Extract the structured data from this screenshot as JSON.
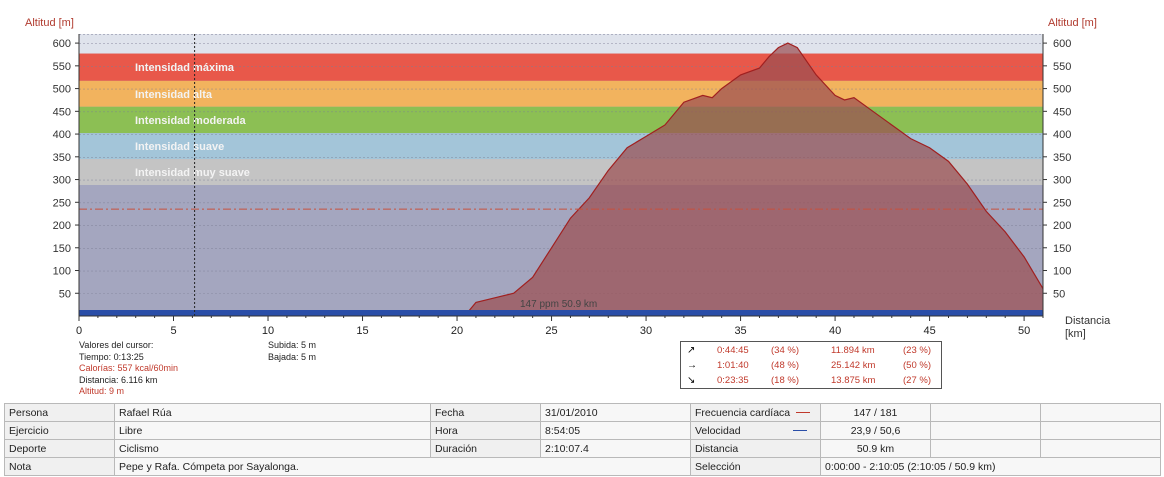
{
  "chart_data": {
    "type": "area",
    "ylabel": "Altitud [m]",
    "xlabel": "Distancia [km]",
    "xlim": [
      0,
      51
    ],
    "ylim": [
      0,
      620
    ],
    "x_ticks": [
      0,
      5,
      10,
      15,
      20,
      25,
      30,
      35,
      40,
      45,
      50
    ],
    "y_ticks": [
      50,
      100,
      150,
      200,
      250,
      300,
      350,
      400,
      450,
      500,
      550,
      600
    ],
    "grid": "dashed horizontal",
    "zones": [
      {
        "label": "Intensidad máxima",
        "from": 517,
        "to": 577,
        "color": "#e8584a"
      },
      {
        "label": "Intensidad alta",
        "from": 460,
        "to": 517,
        "color": "#f2b35e"
      },
      {
        "label": "Intensidad moderada",
        "from": 402,
        "to": 460,
        "color": "#8cbf54"
      },
      {
        "label": "Intensidad suave",
        "from": 345,
        "to": 402,
        "color": "#a3c5d9"
      },
      {
        "label": "Intensidad muy suave",
        "from": 288,
        "to": 345,
        "color": "#c4c4c4"
      }
    ],
    "cursor_x": 6.116,
    "series": [
      {
        "name": "Altitud",
        "color": "#9b3b3b",
        "x": [
          0,
          20.5,
          21,
          22,
          23,
          24,
          25,
          26,
          27,
          28,
          29,
          30,
          31,
          32,
          33,
          33.5,
          34,
          35,
          36,
          36.5,
          37,
          37.5,
          38,
          38.5,
          39,
          40,
          40.5,
          41,
          42,
          43,
          44,
          45,
          46,
          47,
          48,
          49,
          50,
          51
        ],
        "y": [
          5,
          5,
          30,
          40,
          50,
          85,
          150,
          215,
          260,
          320,
          370,
          395,
          420,
          470,
          485,
          480,
          500,
          530,
          545,
          570,
          590,
          600,
          590,
          560,
          530,
          485,
          475,
          480,
          450,
          420,
          390,
          370,
          340,
          290,
          230,
          185,
          130,
          60
        ]
      }
    ],
    "reference_line_y": 235,
    "footer_note": "147 ppm 50.9 km"
  },
  "axes": {
    "left_title": "Altitud [m]",
    "right_title": "Altitud [m]",
    "x_title_1": "Distancia",
    "x_title_2": "[km]"
  },
  "cursor": {
    "title": "Valores del cursor:",
    "tiempo": "Tiempo: 0:13:25",
    "calorias": "Calorías: 557 kcal/60min",
    "distancia": "Distancia: 6.116 km",
    "altitud": "Altitud: 9 m",
    "subida": "Subida: 5 m",
    "bajada": "Bajada: 5 m"
  },
  "summary": [
    {
      "icon": "↗",
      "time": "0:44:45",
      "time_pct": "(34 %)",
      "dist": "11.894 km",
      "dist_pct": "(23 %)"
    },
    {
      "icon": "→",
      "time": "1:01:40",
      "time_pct": "(48 %)",
      "dist": "25.142 km",
      "dist_pct": "(50 %)"
    },
    {
      "icon": "↘",
      "time": "0:23:35",
      "time_pct": "(18 %)",
      "dist": "13.875 km",
      "dist_pct": "(27 %)"
    }
  ],
  "info": {
    "persona_label": "Persona",
    "persona": "Rafael Rúa",
    "ejercicio_label": "Ejercicio",
    "ejercicio": "Libre",
    "deporte_label": "Deporte",
    "deporte": "Ciclismo",
    "nota_label": "Nota",
    "nota": "Pepe y Rafa. Cómpeta por Sayalonga.",
    "fecha_label": "Fecha",
    "fecha": "31/01/2010",
    "hora_label": "Hora",
    "hora": "8:54:05",
    "duracion_label": "Duración",
    "duracion": "2:10:07.4",
    "fc_label": "Frecuencia cardíaca",
    "fc": "147 / 181",
    "velocidad_label": "Velocidad",
    "velocidad": "23,9 / 50,6",
    "distancia_label": "Distancia",
    "distancia": "50.9 km",
    "seleccion_label": "Selección",
    "seleccion": "0:00:00 - 2:10:05 (2:10:05 / 50.9 km)"
  }
}
